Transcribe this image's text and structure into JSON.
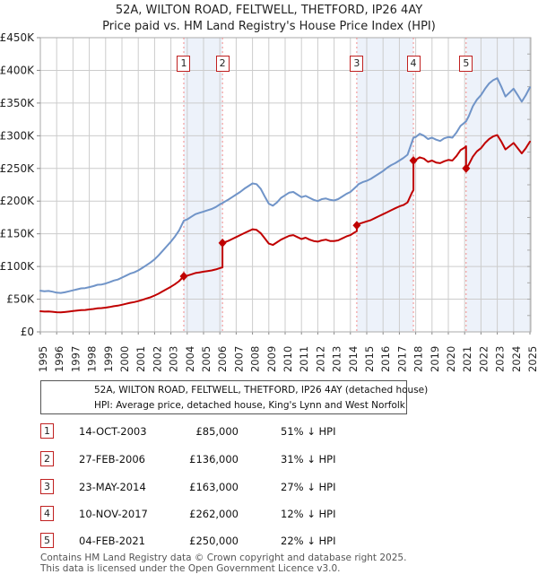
{
  "title": "52A, WILTON ROAD, FELTWELL, THETFORD, IP26 4AY",
  "subtitle": "Price paid vs. HM Land Registry's House Price Index (HPI)",
  "chart_data": {
    "type": "line",
    "units": "GBP_thousands",
    "x_range": [
      1995,
      2025
    ],
    "y_range_k": [
      0,
      450
    ],
    "y_tick_labels": [
      "£0",
      "£50K",
      "£100K",
      "£150K",
      "£200K",
      "£250K",
      "£300K",
      "£350K",
      "£400K",
      "£450K"
    ],
    "x_tick_labels": [
      "1995",
      "1996",
      "1997",
      "1998",
      "1999",
      "2000",
      "2001",
      "2002",
      "2003",
      "2004",
      "2005",
      "2006",
      "2007",
      "2008",
      "2009",
      "2010",
      "2011",
      "2012",
      "2013",
      "2014",
      "2015",
      "2016",
      "2017",
      "2018",
      "2019",
      "2020",
      "2021",
      "2022",
      "2023",
      "2024",
      "2025"
    ],
    "grid": true,
    "legend_position": "below",
    "colors": {
      "price_paid": "#c00000",
      "hpi": "#7094c8",
      "band": "#edf2fa",
      "grid": "#cccccc",
      "border": "#aaaaaa",
      "sale_line": "#f28b8b",
      "marker": "#c00000"
    },
    "series": [
      {
        "name": "price-paid",
        "label": "52A, WILTON ROAD, FELTWELL, THETFORD, IP26 4AY (detached house)",
        "color": "#c00000",
        "points": [
          [
            1995,
            31.5
          ],
          [
            1995.25,
            31
          ],
          [
            1995.5,
            31.3
          ],
          [
            1995.75,
            30.8
          ],
          [
            1996,
            30
          ],
          [
            1996.25,
            29.8
          ],
          [
            1996.5,
            30.3
          ],
          [
            1996.75,
            31
          ],
          [
            1997,
            31.8
          ],
          [
            1997.25,
            32.5
          ],
          [
            1997.5,
            33.3
          ],
          [
            1997.75,
            33.5
          ],
          [
            1998,
            34.3
          ],
          [
            1998.25,
            35
          ],
          [
            1998.5,
            36
          ],
          [
            1998.75,
            36.3
          ],
          [
            1999,
            37
          ],
          [
            1999.25,
            38
          ],
          [
            1999.5,
            39.3
          ],
          [
            1999.75,
            40
          ],
          [
            2000,
            41.5
          ],
          [
            2000.25,
            43
          ],
          [
            2000.5,
            44.5
          ],
          [
            2000.75,
            45.5
          ],
          [
            2001,
            47
          ],
          [
            2001.25,
            49
          ],
          [
            2001.5,
            51
          ],
          [
            2001.75,
            53
          ],
          [
            2002,
            55.5
          ],
          [
            2002.25,
            58.5
          ],
          [
            2002.5,
            62
          ],
          [
            2002.75,
            65.5
          ],
          [
            2003,
            69
          ],
          [
            2003.25,
            73
          ],
          [
            2003.5,
            77.5
          ],
          [
            2003.79,
            85
          ],
          [
            2004,
            86
          ],
          [
            2004.25,
            88
          ],
          [
            2004.5,
            90
          ],
          [
            2004.75,
            91
          ],
          [
            2005,
            92
          ],
          [
            2005.25,
            93
          ],
          [
            2005.5,
            94
          ],
          [
            2005.75,
            95.5
          ],
          [
            2006,
            97.5
          ],
          [
            2006.16,
            98.5
          ],
          [
            2006.16,
            136
          ],
          [
            2006.5,
            139
          ],
          [
            2006.75,
            142
          ],
          [
            2007,
            145
          ],
          [
            2007.25,
            148
          ],
          [
            2007.5,
            151
          ],
          [
            2007.75,
            154
          ],
          [
            2008,
            157
          ],
          [
            2008.25,
            156
          ],
          [
            2008.5,
            151
          ],
          [
            2008.75,
            143
          ],
          [
            2009,
            135
          ],
          [
            2009.25,
            133
          ],
          [
            2009.5,
            137
          ],
          [
            2009.75,
            141
          ],
          [
            2010,
            144
          ],
          [
            2010.25,
            147
          ],
          [
            2010.5,
            148
          ],
          [
            2010.75,
            145
          ],
          [
            2011,
            142
          ],
          [
            2011.25,
            144
          ],
          [
            2011.5,
            141
          ],
          [
            2011.75,
            139
          ],
          [
            2012,
            138
          ],
          [
            2012.25,
            140
          ],
          [
            2012.5,
            141
          ],
          [
            2012.75,
            139
          ],
          [
            2013,
            139
          ],
          [
            2013.25,
            140
          ],
          [
            2013.5,
            143
          ],
          [
            2013.75,
            146
          ],
          [
            2014,
            148
          ],
          [
            2014.25,
            152
          ],
          [
            2014.39,
            154
          ],
          [
            2014.39,
            163
          ],
          [
            2014.5,
            165
          ],
          [
            2014.75,
            167
          ],
          [
            2015,
            169
          ],
          [
            2015.25,
            171
          ],
          [
            2015.5,
            174
          ],
          [
            2015.75,
            177
          ],
          [
            2016,
            180
          ],
          [
            2016.25,
            183
          ],
          [
            2016.5,
            186
          ],
          [
            2016.75,
            189
          ],
          [
            2017,
            192
          ],
          [
            2017.25,
            194
          ],
          [
            2017.5,
            198
          ],
          [
            2017.75,
            212
          ],
          [
            2017.86,
            217
          ],
          [
            2017.86,
            262
          ],
          [
            2018,
            263
          ],
          [
            2018.25,
            267
          ],
          [
            2018.5,
            265
          ],
          [
            2018.75,
            260
          ],
          [
            2019,
            262
          ],
          [
            2019.25,
            259
          ],
          [
            2019.5,
            258
          ],
          [
            2019.75,
            261
          ],
          [
            2020,
            263
          ],
          [
            2020.25,
            262
          ],
          [
            2020.5,
            269
          ],
          [
            2020.75,
            278
          ],
          [
            2021,
            282
          ],
          [
            2021.09,
            284
          ],
          [
            2021.09,
            250
          ],
          [
            2021.25,
            256
          ],
          [
            2021.5,
            268
          ],
          [
            2021.75,
            276
          ],
          [
            2022,
            281
          ],
          [
            2022.25,
            289
          ],
          [
            2022.5,
            295
          ],
          [
            2022.75,
            299
          ],
          [
            2023,
            301
          ],
          [
            2023.25,
            291
          ],
          [
            2023.5,
            279
          ],
          [
            2023.75,
            284
          ],
          [
            2024,
            289
          ],
          [
            2024.25,
            281
          ],
          [
            2024.5,
            273
          ],
          [
            2024.75,
            281
          ],
          [
            2025,
            291
          ]
        ]
      },
      {
        "name": "hpi",
        "label": "HPI: Average price, detached house, King's Lynn and West Norfolk",
        "color": "#7094c8",
        "points": [
          [
            1995,
            63
          ],
          [
            1995.25,
            62
          ],
          [
            1995.5,
            62.5
          ],
          [
            1995.75,
            61.5
          ],
          [
            1996,
            60
          ],
          [
            1996.25,
            59.5
          ],
          [
            1996.5,
            60.5
          ],
          [
            1996.75,
            62
          ],
          [
            1997,
            63.5
          ],
          [
            1997.25,
            65
          ],
          [
            1997.5,
            66.5
          ],
          [
            1997.75,
            67
          ],
          [
            1998,
            68.5
          ],
          [
            1998.25,
            70
          ],
          [
            1998.5,
            72
          ],
          [
            1998.75,
            72.5
          ],
          [
            1999,
            74
          ],
          [
            1999.25,
            76
          ],
          [
            1999.5,
            78.5
          ],
          [
            1999.75,
            80
          ],
          [
            2000,
            83
          ],
          [
            2000.25,
            86
          ],
          [
            2000.5,
            89
          ],
          [
            2000.75,
            91
          ],
          [
            2001,
            94
          ],
          [
            2001.25,
            98
          ],
          [
            2001.5,
            102
          ],
          [
            2001.75,
            106
          ],
          [
            2002,
            111
          ],
          [
            2002.25,
            117
          ],
          [
            2002.5,
            124
          ],
          [
            2002.75,
            131
          ],
          [
            2003,
            138
          ],
          [
            2003.25,
            146
          ],
          [
            2003.5,
            155
          ],
          [
            2003.79,
            170
          ],
          [
            2004,
            172
          ],
          [
            2004.25,
            176
          ],
          [
            2004.5,
            180
          ],
          [
            2004.75,
            182
          ],
          [
            2005,
            184
          ],
          [
            2005.25,
            186
          ],
          [
            2005.5,
            188
          ],
          [
            2005.75,
            191
          ],
          [
            2006,
            195
          ],
          [
            2006.16,
            197
          ],
          [
            2006.5,
            202
          ],
          [
            2006.75,
            206
          ],
          [
            2007,
            210
          ],
          [
            2007.25,
            214
          ],
          [
            2007.5,
            219
          ],
          [
            2007.75,
            223
          ],
          [
            2008,
            227
          ],
          [
            2008.25,
            226
          ],
          [
            2008.5,
            219
          ],
          [
            2008.75,
            207
          ],
          [
            2009,
            196
          ],
          [
            2009.25,
            193
          ],
          [
            2009.5,
            198
          ],
          [
            2009.75,
            205
          ],
          [
            2010,
            209
          ],
          [
            2010.25,
            213
          ],
          [
            2010.5,
            214
          ],
          [
            2010.75,
            210
          ],
          [
            2011,
            206
          ],
          [
            2011.25,
            208
          ],
          [
            2011.5,
            205
          ],
          [
            2011.75,
            202
          ],
          [
            2012,
            200
          ],
          [
            2012.25,
            203
          ],
          [
            2012.5,
            204
          ],
          [
            2012.75,
            202
          ],
          [
            2013,
            201
          ],
          [
            2013.25,
            203
          ],
          [
            2013.5,
            207
          ],
          [
            2013.75,
            211
          ],
          [
            2014,
            214
          ],
          [
            2014.39,
            223
          ],
          [
            2014.5,
            226
          ],
          [
            2014.75,
            229
          ],
          [
            2015,
            231
          ],
          [
            2015.25,
            234
          ],
          [
            2015.5,
            238
          ],
          [
            2015.75,
            242
          ],
          [
            2016,
            246
          ],
          [
            2016.25,
            251
          ],
          [
            2016.5,
            255
          ],
          [
            2016.75,
            258
          ],
          [
            2017,
            262
          ],
          [
            2017.25,
            266
          ],
          [
            2017.5,
            271
          ],
          [
            2017.86,
            297
          ],
          [
            2018,
            298
          ],
          [
            2018.25,
            303
          ],
          [
            2018.5,
            300
          ],
          [
            2018.75,
            295
          ],
          [
            2019,
            297
          ],
          [
            2019.25,
            294
          ],
          [
            2019.5,
            292
          ],
          [
            2019.75,
            296
          ],
          [
            2020,
            298
          ],
          [
            2020.25,
            297
          ],
          [
            2020.5,
            305
          ],
          [
            2020.75,
            315
          ],
          [
            2021.09,
            322
          ],
          [
            2021.25,
            330
          ],
          [
            2021.5,
            345
          ],
          [
            2021.75,
            355
          ],
          [
            2022,
            362
          ],
          [
            2022.25,
            372
          ],
          [
            2022.5,
            380
          ],
          [
            2022.75,
            385
          ],
          [
            2023,
            388
          ],
          [
            2023.25,
            375
          ],
          [
            2023.5,
            360
          ],
          [
            2023.75,
            366
          ],
          [
            2024,
            372
          ],
          [
            2024.25,
            362
          ],
          [
            2024.5,
            352
          ],
          [
            2024.75,
            362
          ],
          [
            2025,
            374
          ]
        ]
      }
    ],
    "sales": [
      {
        "n": "1",
        "x": 2003.79,
        "value_k": 85
      },
      {
        "n": "2",
        "x": 2006.16,
        "value_k": 136
      },
      {
        "n": "3",
        "x": 2014.39,
        "value_k": 163
      },
      {
        "n": "4",
        "x": 2017.86,
        "value_k": 262
      },
      {
        "n": "5",
        "x": 2021.09,
        "value_k": 250
      }
    ],
    "bands": [
      [
        2003.79,
        2006.16
      ],
      [
        2014.39,
        2017.86
      ],
      [
        2021.09,
        2025.1
      ]
    ]
  },
  "transactions": [
    {
      "num": "1",
      "date": "14-OCT-2003",
      "price": "£85,000",
      "pct": "51% ↓ HPI"
    },
    {
      "num": "2",
      "date": "27-FEB-2006",
      "price": "£136,000",
      "pct": "31% ↓ HPI"
    },
    {
      "num": "3",
      "date": "23-MAY-2014",
      "price": "£163,000",
      "pct": "27% ↓ HPI"
    },
    {
      "num": "4",
      "date": "10-NOV-2017",
      "price": "£262,000",
      "pct": "12% ↓ HPI"
    },
    {
      "num": "5",
      "date": "04-FEB-2021",
      "price": "£250,000",
      "pct": "22% ↓ HPI"
    }
  ],
  "footer": {
    "line1": "Contains HM Land Registry data © Crown copyright and database right 2025.",
    "line2": "This data is licensed under the Open Government Licence v3.0."
  }
}
